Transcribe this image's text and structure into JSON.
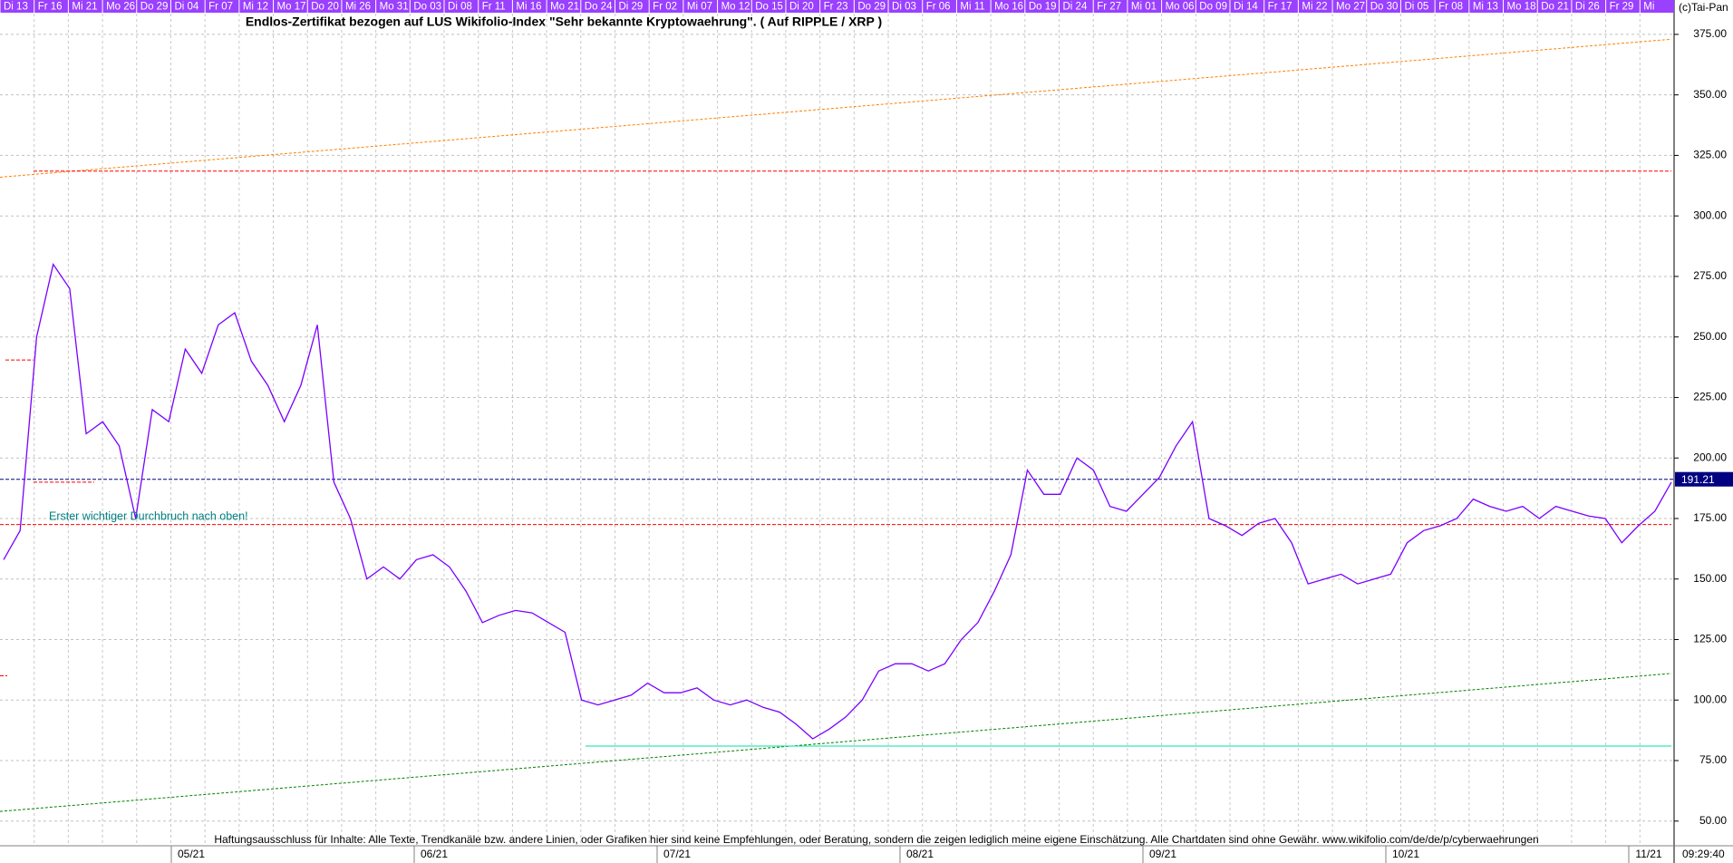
{
  "chart_data": {
    "type": "line",
    "title": "Endlos-Zertifikat bezogen auf LUS Wikifolio-Index \"Sehr bekannte Kryptowaehrung\". ( Auf RIPPLE / XRP )",
    "copyright": "(c)Tai-Pan",
    "timestamp": "09:29:40",
    "annotation": "Erster wichtiger Durchbruch nach oben!",
    "footer": "Haftungsausschluss für Inhalte: Alle Texte, Trendkanäle bzw. andere Linien, oder Grafiken hier sind keine Empfehlungen, oder Beratung, sondern die zeigen lediglich meine eigene Einschätzung. Alle Chartdaten sind ohne Gewähr.  www.wikifolio.com/de/de/p/cyberwaehrungen",
    "day_labels": [
      "Di 13",
      "Fr 16",
      "Mi 21",
      "Mo 26",
      "Do 29",
      "Di 04",
      "Fr 07",
      "Mi 12",
      "Mo 17",
      "Do 20",
      "Mi 26",
      "Mo 31",
      "Do 03",
      "Di 08",
      "Fr 11",
      "Mi 16",
      "Mo 21",
      "Do 24",
      "Di 29",
      "Fr 02",
      "Mi 07",
      "Mo 12",
      "Do 15",
      "Di 20",
      "Fr 23",
      "Do 29",
      "Di 03",
      "Fr 06",
      "Mi 11",
      "Mo 16",
      "Do 19",
      "Di 24",
      "Fr 27",
      "Mi 01",
      "Mo 06",
      "Do 09",
      "Di 14",
      "Fr 17",
      "Mi 22",
      "Mo 27",
      "Do 30",
      "Di 05",
      "Fr 08",
      "Mi 13",
      "Mo 18",
      "Do 21",
      "Di 26",
      "Fr 29",
      "Mi"
    ],
    "month_labels": [
      "05/21",
      "06/21",
      "07/21",
      "08/21",
      "09/21",
      "10/21",
      "11/21"
    ],
    "categories": [
      null,
      null,
      null,
      null,
      null,
      null,
      null,
      null,
      null,
      null,
      null,
      null,
      null,
      null,
      null,
      null,
      null,
      null,
      null,
      null,
      null,
      null,
      null,
      null,
      null,
      null,
      null,
      null,
      null,
      null,
      null,
      null,
      null,
      null,
      null,
      null,
      null,
      null,
      null,
      null,
      null,
      null,
      null,
      null,
      null,
      null,
      null,
      null,
      null,
      null,
      null,
      null,
      null,
      null,
      null,
      null,
      null,
      null,
      null,
      null,
      null,
      null,
      null,
      null,
      null,
      null,
      null,
      null,
      null,
      null,
      null,
      null,
      null,
      null,
      null,
      null,
      null,
      null,
      null,
      null,
      null,
      null,
      null,
      null,
      null,
      null,
      null,
      null,
      null,
      null,
      null,
      null,
      null,
      null,
      null,
      null,
      null,
      null,
      null,
      null,
      null,
      null
    ],
    "series": [
      {
        "color": "#7a00ff",
        "values": [
          158,
          170,
          250,
          280,
          270,
          210,
          215,
          205,
          175,
          220,
          215,
          245,
          235,
          255,
          260,
          240,
          230,
          215,
          230,
          255,
          190,
          175,
          150,
          155,
          150,
          158,
          160,
          155,
          145,
          132,
          135,
          137,
          136,
          132,
          128,
          100,
          98,
          100,
          102,
          107,
          103,
          103,
          105,
          100,
          98,
          100,
          97,
          95,
          90,
          84,
          88,
          93,
          100,
          112,
          115,
          115,
          112,
          115,
          125,
          132,
          145,
          160,
          195,
          185,
          185,
          200,
          195,
          180,
          178,
          185,
          192,
          205,
          215,
          175,
          172,
          168,
          173,
          175,
          165,
          148,
          150,
          152,
          148,
          150,
          152,
          165,
          170,
          172,
          175,
          183,
          180,
          178,
          180,
          175,
          180,
          178,
          176,
          175,
          165,
          172,
          178,
          190
        ]
      }
    ],
    "trend_lines": [
      {
        "color": "#008000",
        "values": [
          54,
          111
        ]
      },
      {
        "color": "#ff8000",
        "values": [
          316,
          373
        ]
      }
    ],
    "hlines": [
      {
        "color": "#ff0000",
        "value": 318.5
      },
      {
        "color": "#ff0000",
        "value": 172.5
      },
      {
        "color": "#000080",
        "value": 191.21
      },
      {
        "color": "#00e0a0",
        "value": 81
      }
    ],
    "short_lines": [
      {
        "color": "#ff0000",
        "value": 240.5
      },
      {
        "color": "#ff0000",
        "value": 190
      },
      {
        "color": "#ff0000",
        "value": 110
      }
    ],
    "price_label_line": 2,
    "ylim": [
      39.8,
      389.2
    ],
    "yticks": [
      {
        "value": 50,
        "label": "50.00"
      },
      {
        "value": 75,
        "label": "75.00"
      },
      {
        "value": 100,
        "label": "100.00"
      },
      {
        "value": 125,
        "label": "125.00"
      },
      {
        "value": 150,
        "label": "150.00"
      },
      {
        "value": 175,
        "label": "175.00"
      },
      {
        "value": 200,
        "label": "200.00"
      },
      {
        "value": 225,
        "label": "225.00"
      },
      {
        "value": 250,
        "label": "250.00"
      },
      {
        "value": 275,
        "label": "275.00"
      },
      {
        "value": 300,
        "label": "300.00"
      },
      {
        "value": 325,
        "label": "325.00"
      },
      {
        "value": 350,
        "label": "350.00"
      },
      {
        "value": 375,
        "label": "375.00"
      }
    ],
    "grid": true
  }
}
